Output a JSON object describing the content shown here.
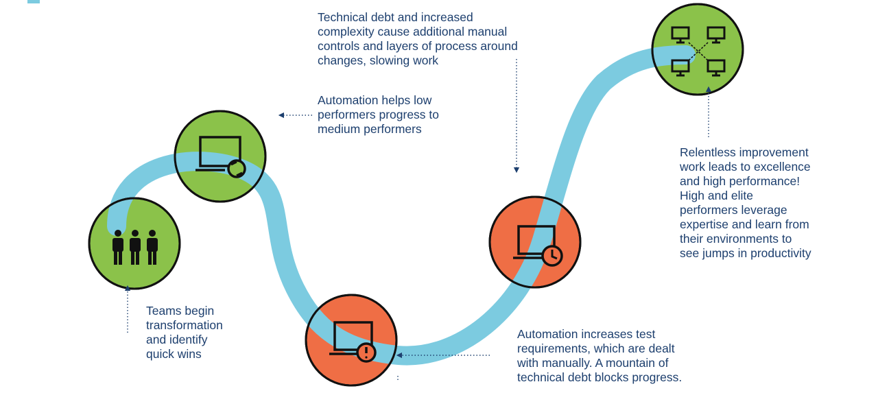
{
  "palette": {
    "path": "#7ccbe0",
    "green": "#8bc24a",
    "green_overlay": "#3fb550",
    "orange": "#ef6e45",
    "orange_overlay": "#a24e3f",
    "ring": "#111111",
    "icon": "#111111",
    "text": "#1d3f6e",
    "connector": "#1d3f6e"
  },
  "stages": [
    {
      "id": "teams",
      "status": "green",
      "icon": "people-icon",
      "caption": [
        "Teams begin",
        "transformation",
        "and identify",
        "quick wins"
      ]
    },
    {
      "id": "automation-low",
      "status": "green",
      "icon": "monitor-refresh-icon",
      "caption": [
        "Automation helps low",
        "performers progress to",
        "medium performers"
      ]
    },
    {
      "id": "test-requirements",
      "status": "orange",
      "icon": "monitor-warning-icon",
      "caption": [
        "Automation increases test",
        "requirements, which are dealt",
        "with manually. A mountain of",
        "technical debt blocks progress."
      ]
    },
    {
      "id": "technical-debt",
      "status": "orange",
      "icon": "monitor-clock-icon",
      "caption": [
        "Technical debt and increased",
        "complexity cause additional manual",
        "controls and layers of process around",
        "changes, slowing work"
      ]
    },
    {
      "id": "relentless-improvement",
      "status": "green",
      "icon": "network-icon",
      "caption": [
        "Relentless improvement",
        "work leads to excellence",
        "and high performance!",
        "High and elite",
        "performers leverage",
        "expertise and learn from",
        "their environments to",
        "see jumps in productivity"
      ]
    }
  ]
}
